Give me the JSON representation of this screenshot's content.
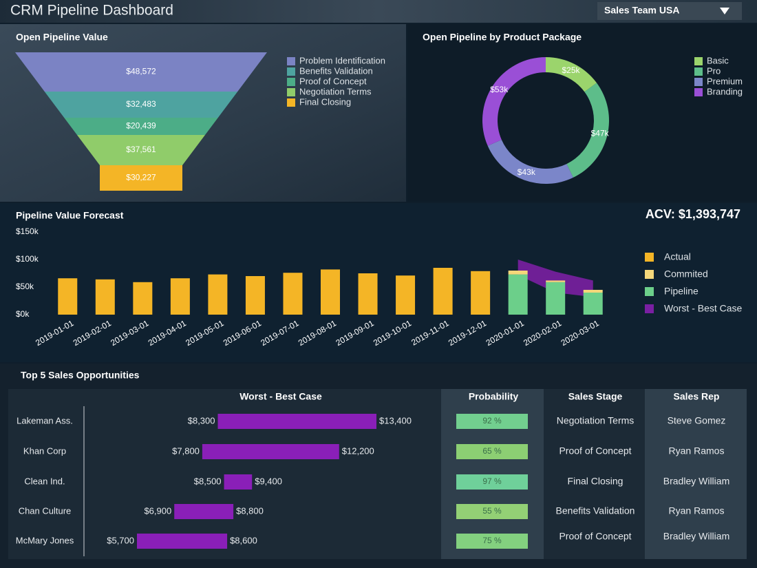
{
  "header": {
    "title": "CRM Pipeline Dashboard",
    "dropdown": "Sales Team USA"
  },
  "kpi": "ACV: $1,393,747",
  "chart_data": [
    {
      "type": "funnel",
      "title": "Open Pipeline Value",
      "categories": [
        "Problem Identification",
        "Benefits Validation",
        "Proof of Concept",
        "Negotiation Terms",
        "Final Closing"
      ],
      "values": [
        48572,
        32483,
        20439,
        37561,
        30227
      ],
      "value_labels": [
        "$48,572",
        "$32,483",
        "$20,439",
        "$37,561",
        "$30,227"
      ],
      "colors": [
        "#7b83c4",
        "#4ea3a0",
        "#4cad87",
        "#90cc6a",
        "#f4b526"
      ]
    },
    {
      "type": "pie",
      "donut": true,
      "title": "Open Pipeline by Product Package",
      "categories": [
        "Basic",
        "Pro",
        "Premium",
        "Branding"
      ],
      "values": [
        25,
        47,
        43,
        53
      ],
      "value_labels": [
        "$25k",
        "$47k",
        "$43k",
        "$53k"
      ],
      "colors": [
        "#9bd46c",
        "#5dbd8a",
        "#7b86c9",
        "#9a4fd6"
      ]
    },
    {
      "type": "bar",
      "stacked": true,
      "title": "Pipeline Value Forecast",
      "categories": [
        "2019-01-01",
        "2019-02-01",
        "2019-03-01",
        "2019-04-01",
        "2019-05-01",
        "2019-06-01",
        "2019-07-01",
        "2019-08-01",
        "2019-09-01",
        "2019-10-01",
        "2019-11-01",
        "2019-12-01",
        "2020-01-01",
        "2020-02-01",
        "2020-03-01"
      ],
      "ylim": [
        0,
        150000
      ],
      "yticks": [
        {
          "value": 0,
          "label": "$0k"
        },
        {
          "value": 50000,
          "label": "$50k"
        },
        {
          "value": 100000,
          "label": "$100k"
        },
        {
          "value": 150000,
          "label": "$150k"
        }
      ],
      "series": [
        {
          "name": "Actual",
          "color": "#f4b526",
          "values": [
            66000,
            64000,
            59000,
            66000,
            73000,
            70000,
            76000,
            82000,
            75000,
            71000,
            85000,
            79000,
            null,
            null,
            null
          ]
        },
        {
          "name": "Commited",
          "color": "#f5d77a",
          "values": [
            null,
            null,
            null,
            null,
            null,
            null,
            null,
            null,
            null,
            null,
            null,
            null,
            7000,
            3000,
            5000
          ]
        },
        {
          "name": "Pipeline",
          "color": "#6ccf8a",
          "values": [
            null,
            null,
            null,
            null,
            null,
            null,
            null,
            null,
            null,
            null,
            null,
            null,
            73000,
            59000,
            40000
          ]
        },
        {
          "name": "Worst - Best Case",
          "color": "#7a1fa2",
          "type": "band",
          "low": [
            null,
            null,
            null,
            null,
            null,
            null,
            null,
            null,
            null,
            null,
            null,
            null,
            72000,
            40000,
            32000
          ],
          "high": [
            null,
            null,
            null,
            null,
            null,
            null,
            null,
            null,
            null,
            null,
            null,
            null,
            100000,
            78000,
            62000
          ]
        }
      ]
    }
  ],
  "opportunities": {
    "title": "Top 5 Sales Opportunities",
    "columns": [
      "Worst - Best Case",
      "Probability",
      "Sales Stage",
      "Sales Rep"
    ],
    "rows": [
      {
        "name": "Lakeman Ass.",
        "worst": 8300,
        "best": 13400,
        "worst_label": "$8,300",
        "best_label": "$13,400",
        "probability": 92,
        "probability_label": "92 %",
        "probability_color": "#72cf8f",
        "stage": "Negotiation Terms",
        "rep": "Steve Gomez"
      },
      {
        "name": "Khan Corp",
        "worst": 7800,
        "best": 12200,
        "worst_label": "$7,800",
        "best_label": "$12,200",
        "probability": 65,
        "probability_label": "65 %",
        "probability_color": "#8ccf73",
        "stage": "Proof of Concept",
        "rep": "Ryan Ramos"
      },
      {
        "name": "Clean Ind.",
        "worst": 8500,
        "best": 9400,
        "worst_label": "$8,500",
        "best_label": "$9,400",
        "probability": 97,
        "probability_label": "97 %",
        "probability_color": "#6fd09a",
        "stage": "Final Closing",
        "rep": "Bradley William"
      },
      {
        "name": "Chan Culture",
        "worst": 6900,
        "best": 8800,
        "worst_label": "$6,900",
        "best_label": "$8,800",
        "probability": 55,
        "probability_label": "55 %",
        "probability_color": "#93d075",
        "stage": "Benefits Validation",
        "rep": "Ryan Ramos"
      },
      {
        "name": "McMary Jones",
        "worst": 5700,
        "best": 8600,
        "worst_label": "$5,700",
        "best_label": "$8,600",
        "probability": 75,
        "probability_label": "75 %",
        "probability_color": "#83d07f",
        "stage": "Proof of Concept",
        "rep": "Bradley William"
      }
    ]
  }
}
